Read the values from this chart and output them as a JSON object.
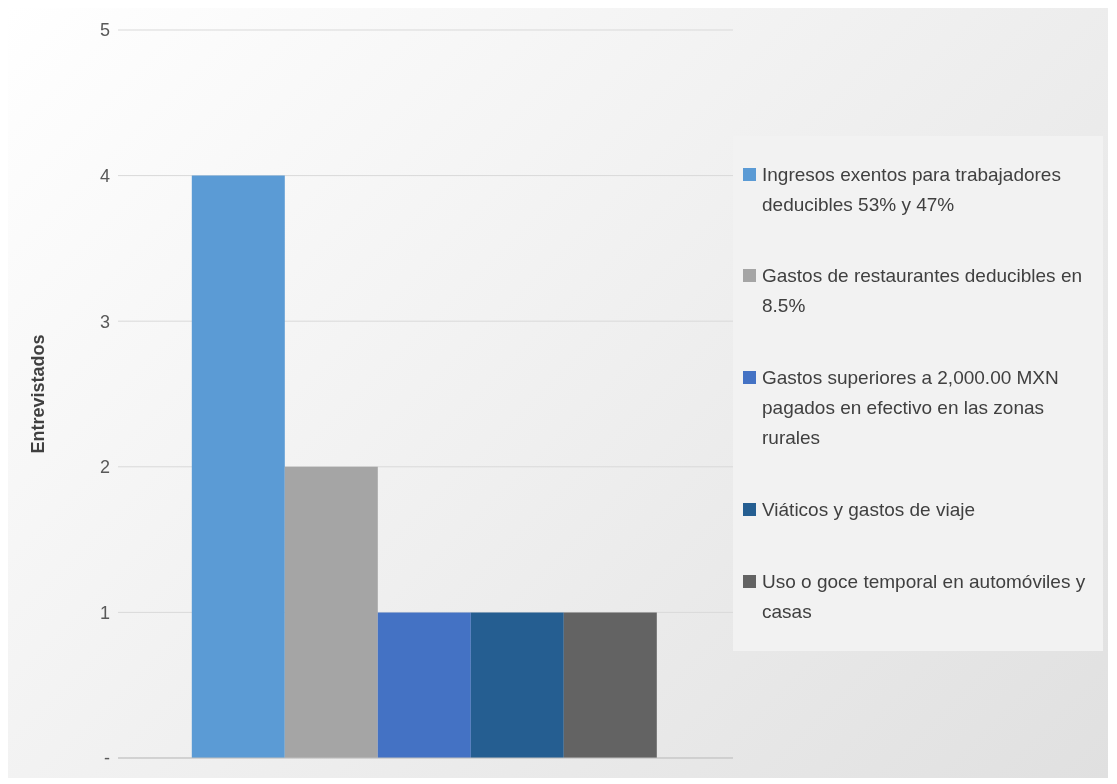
{
  "chart_data": {
    "type": "bar",
    "ylabel": "Entrevistados",
    "categories": [
      null
    ],
    "series": [
      {
        "name": "Ingresos exentos para trabajadores deducibles 53% y 47%",
        "color": "#5b9bd5",
        "values": [
          4
        ]
      },
      {
        "name": "Gastos de restaurantes deducibles en 8.5%",
        "color": "#a5a5a5",
        "values": [
          2
        ]
      },
      {
        "name": "Gastos superiores a 2,000.00 MXN pagados en efectivo en las zonas rurales",
        "color": "#4472c4",
        "values": [
          1
        ]
      },
      {
        "name": "Viáticos y gastos de viaje",
        "color": "#255e91",
        "values": [
          1
        ]
      },
      {
        "name": "Uso o goce temporal en automóviles y casas",
        "color": "#636363",
        "values": [
          1
        ]
      }
    ],
    "ylim": [
      0,
      5
    ],
    "yticks": [
      {
        "value": 0,
        "label": "-"
      },
      1,
      2,
      3,
      4,
      5
    ],
    "grid": "y",
    "legend": "right"
  }
}
